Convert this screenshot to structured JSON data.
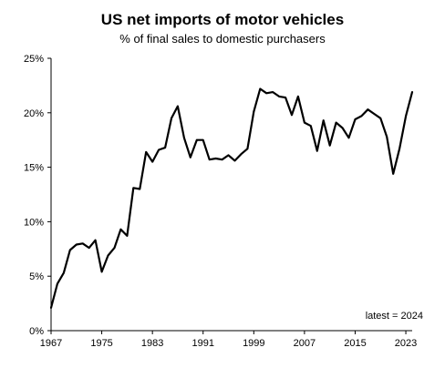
{
  "chart_data": {
    "type": "line",
    "title": "US net imports of motor vehicles",
    "subtitle": "% of  final sales to domestic purchasers",
    "xlabel": "",
    "ylabel": "",
    "xlim": [
      1967,
      2024
    ],
    "ylim": [
      0,
      25
    ],
    "x_ticks": [
      "1967",
      "1975",
      "1983",
      "1991",
      "1999",
      "2007",
      "2015",
      "2023"
    ],
    "y_ticks": [
      "0%",
      "5%",
      "10%",
      "15%",
      "20%",
      "25%"
    ],
    "grid": false,
    "annotation": "latest = 2024",
    "line_color": "#000000",
    "series": [
      {
        "x": [
          1967,
          1968,
          1969,
          1970,
          1971,
          1972,
          1973,
          1974,
          1975,
          1976,
          1977,
          1978,
          1979,
          1980,
          1981,
          1982,
          1983,
          1984,
          1985,
          1986,
          1987,
          1988,
          1989,
          1990,
          1991,
          1992,
          1993,
          1994,
          1995,
          1996,
          1997,
          1998,
          1999,
          2000,
          2001,
          2002,
          2003,
          2004,
          2005,
          2006,
          2007,
          2008,
          2009,
          2010,
          2011,
          2012,
          2013,
          2014,
          2015,
          2016,
          2017,
          2018,
          2019,
          2020,
          2021,
          2022,
          2023,
          2024
        ],
        "values": [
          2.1,
          4.3,
          5.3,
          7.4,
          7.9,
          8.0,
          7.6,
          8.3,
          5.4,
          6.9,
          7.6,
          9.3,
          8.7,
          13.1,
          13.0,
          16.4,
          15.5,
          16.6,
          16.8,
          19.5,
          20.6,
          17.7,
          15.9,
          17.5,
          17.5,
          15.7,
          15.8,
          15.7,
          16.1,
          15.6,
          16.2,
          16.7,
          20.1,
          22.2,
          21.8,
          21.9,
          21.5,
          21.4,
          19.8,
          21.5,
          19.1,
          18.8,
          16.5,
          19.3,
          17.0,
          19.1,
          18.6,
          17.7,
          19.4,
          19.7,
          20.3,
          19.9,
          19.5,
          17.8,
          14.4,
          16.7,
          19.7,
          21.9
        ]
      }
    ]
  }
}
